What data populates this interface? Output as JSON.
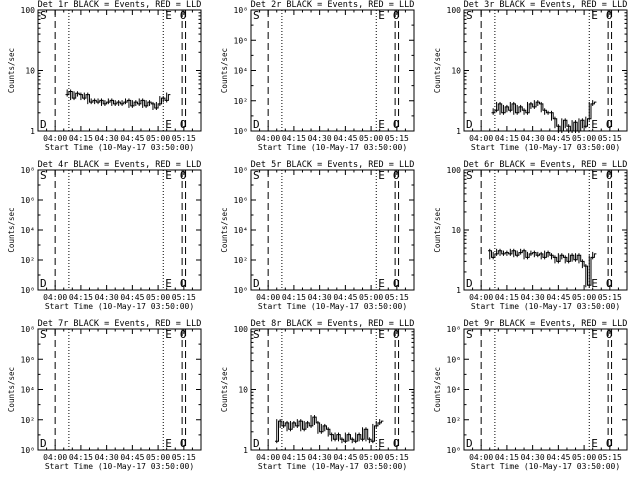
{
  "page": {
    "background": "#ffffff",
    "foreground": "#000000"
  },
  "chart_data": [
    {
      "type": "line",
      "title": "Det 1r BLACK = Events, RED = LLD",
      "xlabel": "Start Time (10-May-17 03:50:00)",
      "ylabel": "Counts/sec",
      "xlim": [
        "03:50",
        "05:25"
      ],
      "ylim": [
        1,
        100
      ],
      "yscale": "log",
      "y_tick_labels": [
        "1",
        "10",
        "100"
      ],
      "x_tick_labels": [
        "04:00",
        "04:15",
        "04:30",
        "04:45",
        "05:00",
        "05:15"
      ],
      "vlines": [
        {
          "time": "04:00",
          "style": "dashed"
        },
        {
          "time": "04:08",
          "style": "dotted"
        },
        {
          "time": "05:03",
          "style": "dotted"
        },
        {
          "time": "05:14",
          "style": "dashed"
        },
        {
          "time": "05:16",
          "style": "dashed"
        }
      ],
      "markers": {
        "top_left": "S",
        "bottom_left": "D",
        "top_right": "E",
        "right": "E",
        "right_circle": "O"
      },
      "series": [
        {
          "x": [
            "04:06",
            "04:08",
            "04:10",
            "04:12",
            "04:14",
            "04:16",
            "04:18",
            "04:20",
            "04:22",
            "04:24",
            "04:26",
            "04:28",
            "04:30",
            "04:32",
            "04:34",
            "04:36",
            "04:38",
            "04:40",
            "04:42",
            "04:44",
            "04:46",
            "04:48",
            "04:50",
            "04:52",
            "04:54",
            "04:56",
            "04:58",
            "05:00",
            "05:02",
            "05:04",
            "05:06"
          ],
          "y": [
            4.0,
            4.5,
            3.5,
            4.2,
            4.0,
            3.5,
            4.0,
            3.0,
            3.2,
            3.0,
            3.2,
            2.8,
            3.0,
            3.2,
            2.8,
            3.0,
            2.8,
            3.0,
            3.2,
            2.6,
            3.0,
            2.8,
            3.2,
            2.6,
            3.0,
            2.8,
            2.4,
            2.8,
            3.5,
            3.2,
            4.0
          ]
        }
      ]
    },
    {
      "type": "line",
      "title": "Det 2r BLACK = Events, RED = LLD",
      "xlabel": "Start Time (10-May-17 03:50:00)",
      "ylabel": "Counts/sec",
      "xlim": [
        "03:50",
        "05:25"
      ],
      "ylim": [
        1,
        100000000
      ],
      "yscale": "log",
      "y_tick_labels": [
        "10⁰",
        "10²",
        "10⁴",
        "10⁶",
        "10⁸"
      ],
      "x_tick_labels": [
        "04:00",
        "04:15",
        "04:30",
        "04:45",
        "05:00",
        "05:15"
      ],
      "vlines": [
        {
          "time": "04:00",
          "style": "dashed"
        },
        {
          "time": "04:08",
          "style": "dotted"
        },
        {
          "time": "05:03",
          "style": "dotted"
        },
        {
          "time": "05:14",
          "style": "dashed"
        },
        {
          "time": "05:16",
          "style": "dashed"
        }
      ],
      "markers": {
        "top_left": "S",
        "bottom_left": "D",
        "top_right": "E",
        "right": "E",
        "right_circle": "O"
      },
      "series": []
    },
    {
      "type": "line",
      "title": "Det 3r BLACK = Events, RED = LLD",
      "xlabel": "Start Time (10-May-17 03:50:00)",
      "ylabel": "Counts/sec",
      "xlim": [
        "03:50",
        "05:25"
      ],
      "ylim": [
        1,
        100
      ],
      "yscale": "log",
      "y_tick_labels": [
        "1",
        "10",
        "100"
      ],
      "x_tick_labels": [
        "04:00",
        "04:15",
        "04:30",
        "04:45",
        "05:00",
        "05:15"
      ],
      "vlines": [
        {
          "time": "04:00",
          "style": "dashed"
        },
        {
          "time": "04:08",
          "style": "dotted"
        },
        {
          "time": "05:03",
          "style": "dotted"
        },
        {
          "time": "05:14",
          "style": "dashed"
        },
        {
          "time": "05:16",
          "style": "dashed"
        }
      ],
      "markers": {
        "top_left": "S",
        "bottom_left": "D",
        "top_right": "E",
        "right": "E",
        "right_circle": "O"
      },
      "series": [
        {
          "x": [
            "04:06",
            "04:08",
            "04:10",
            "04:12",
            "04:14",
            "04:16",
            "04:18",
            "04:20",
            "04:22",
            "04:24",
            "04:26",
            "04:28",
            "04:30",
            "04:32",
            "04:34",
            "04:36",
            "04:38",
            "04:40",
            "04:42",
            "04:44",
            "04:46",
            "04:48",
            "04:50",
            "04:52",
            "04:54",
            "04:56",
            "04:58",
            "05:00",
            "05:02",
            "05:04",
            "05:06"
          ],
          "y": [
            2.0,
            2.2,
            2.8,
            2.0,
            2.5,
            2.2,
            2.8,
            2.0,
            2.5,
            2.2,
            2.0,
            2.8,
            2.5,
            3.0,
            2.8,
            2.2,
            2.0,
            2.0,
            1.6,
            1.2,
            1.0,
            1.5,
            1.2,
            1.0,
            1.4,
            1.0,
            1.5,
            1.2,
            1.6,
            2.8,
            3.0
          ]
        }
      ]
    },
    {
      "type": "line",
      "title": "Det 4r BLACK = Events, RED = LLD",
      "xlabel": "Start Time (10-May-17 03:50:00)",
      "ylabel": "Counts/sec",
      "xlim": [
        "03:50",
        "05:25"
      ],
      "ylim": [
        1,
        100000000
      ],
      "yscale": "log",
      "y_tick_labels": [
        "10⁰",
        "10²",
        "10⁴",
        "10⁶",
        "10⁸"
      ],
      "x_tick_labels": [
        "04:00",
        "04:15",
        "04:30",
        "04:45",
        "05:00",
        "05:15"
      ],
      "vlines": [
        {
          "time": "04:00",
          "style": "dashed"
        },
        {
          "time": "04:08",
          "style": "dotted"
        },
        {
          "time": "05:03",
          "style": "dotted"
        },
        {
          "time": "05:14",
          "style": "dashed"
        },
        {
          "time": "05:16",
          "style": "dashed"
        }
      ],
      "markers": {
        "top_left": "S",
        "bottom_left": "D",
        "top_right": "E",
        "right": "E",
        "right_circle": "O"
      },
      "series": []
    },
    {
      "type": "line",
      "title": "Det 5r BLACK = Events, RED = LLD",
      "xlabel": "Start Time (10-May-17 03:50:00)",
      "ylabel": "Counts/sec",
      "xlim": [
        "03:50",
        "05:25"
      ],
      "ylim": [
        1,
        100000000
      ],
      "yscale": "log",
      "y_tick_labels": [
        "10⁰",
        "10²",
        "10⁴",
        "10⁶",
        "10⁸"
      ],
      "x_tick_labels": [
        "04:00",
        "04:15",
        "04:30",
        "04:45",
        "05:00",
        "05:15"
      ],
      "vlines": [
        {
          "time": "04:00",
          "style": "dashed"
        },
        {
          "time": "04:08",
          "style": "dotted"
        },
        {
          "time": "05:03",
          "style": "dotted"
        },
        {
          "time": "05:14",
          "style": "dashed"
        },
        {
          "time": "05:16",
          "style": "dashed"
        }
      ],
      "markers": {
        "top_left": "S",
        "bottom_left": "D",
        "top_right": "E",
        "right": "E",
        "right_circle": "O"
      },
      "series": []
    },
    {
      "type": "line",
      "title": "Det 6r BLACK = Events, RED = LLD",
      "xlabel": "Start Time (10-May-17 03:50:00)",
      "ylabel": "Counts/sec",
      "xlim": [
        "03:50",
        "05:25"
      ],
      "ylim": [
        1,
        100
      ],
      "yscale": "log",
      "y_tick_labels": [
        "1",
        "10",
        "100"
      ],
      "x_tick_labels": [
        "04:00",
        "04:15",
        "04:30",
        "04:45",
        "05:00",
        "05:15"
      ],
      "vlines": [
        {
          "time": "04:00",
          "style": "dashed"
        },
        {
          "time": "04:08",
          "style": "dotted"
        },
        {
          "time": "05:03",
          "style": "dotted"
        },
        {
          "time": "05:14",
          "style": "dashed"
        },
        {
          "time": "05:16",
          "style": "dashed"
        }
      ],
      "markers": {
        "top_left": "S",
        "bottom_left": "D",
        "top_right": "E",
        "right": "E",
        "right_circle": "O"
      },
      "series": [
        {
          "x": [
            "04:04",
            "04:06",
            "04:08",
            "04:10",
            "04:12",
            "04:14",
            "04:16",
            "04:18",
            "04:20",
            "04:22",
            "04:24",
            "04:26",
            "04:28",
            "04:30",
            "04:32",
            "04:34",
            "04:36",
            "04:38",
            "04:40",
            "04:42",
            "04:44",
            "04:46",
            "04:48",
            "04:50",
            "04:52",
            "04:54",
            "04:56",
            "04:58",
            "05:00",
            "05:02",
            "05:04",
            "05:06"
          ],
          "y": [
            4.5,
            3.5,
            4.0,
            4.5,
            4.0,
            4.2,
            4.0,
            4.5,
            3.8,
            4.2,
            4.5,
            3.5,
            4.0,
            4.2,
            3.8,
            4.0,
            3.5,
            4.2,
            3.8,
            3.5,
            3.0,
            3.8,
            3.5,
            3.0,
            3.8,
            3.2,
            3.8,
            3.0,
            2.5,
            1.2,
            3.5,
            4.0
          ]
        }
      ]
    },
    {
      "type": "line",
      "title": "Det 7r BLACK = Events, RED = LLD",
      "xlabel": "Start Time (10-May-17 03:50:00)",
      "ylabel": "Counts/sec",
      "xlim": [
        "03:50",
        "05:25"
      ],
      "ylim": [
        1,
        100000000
      ],
      "yscale": "log",
      "y_tick_labels": [
        "10⁰",
        "10²",
        "10⁴",
        "10⁶",
        "10⁸"
      ],
      "x_tick_labels": [
        "04:00",
        "04:15",
        "04:30",
        "04:45",
        "05:00",
        "05:15"
      ],
      "vlines": [
        {
          "time": "04:00",
          "style": "dashed"
        },
        {
          "time": "04:08",
          "style": "dotted"
        },
        {
          "time": "05:03",
          "style": "dotted"
        },
        {
          "time": "05:14",
          "style": "dashed"
        },
        {
          "time": "05:16",
          "style": "dashed"
        }
      ],
      "markers": {
        "top_left": "S",
        "bottom_left": "D",
        "top_right": "E",
        "right": "E",
        "right_circle": "O"
      },
      "series": []
    },
    {
      "type": "line",
      "title": "Det 8r BLACK = Events, RED = LLD",
      "xlabel": "Start Time (10-May-17 03:50:00)",
      "ylabel": "Counts/sec",
      "xlim": [
        "03:50",
        "05:25"
      ],
      "ylim": [
        1,
        100
      ],
      "yscale": "log",
      "y_tick_labels": [
        "1",
        "10",
        "100"
      ],
      "x_tick_labels": [
        "04:00",
        "04:15",
        "04:30",
        "04:45",
        "05:00",
        "05:15"
      ],
      "vlines": [
        {
          "time": "04:00",
          "style": "dashed"
        },
        {
          "time": "04:08",
          "style": "dotted"
        },
        {
          "time": "05:03",
          "style": "dotted"
        },
        {
          "time": "05:14",
          "style": "dashed"
        },
        {
          "time": "05:16",
          "style": "dashed"
        }
      ],
      "markers": {
        "top_left": "S",
        "bottom_left": "D",
        "top_right": "E",
        "right": "E",
        "right_circle": "O"
      },
      "series": [
        {
          "x": [
            "04:04",
            "04:06",
            "04:08",
            "04:10",
            "04:12",
            "04:14",
            "04:16",
            "04:18",
            "04:20",
            "04:22",
            "04:24",
            "04:26",
            "04:28",
            "04:30",
            "04:32",
            "04:34",
            "04:36",
            "04:38",
            "04:40",
            "04:42",
            "04:44",
            "04:46",
            "04:48",
            "04:50",
            "04:52",
            "04:54",
            "04:56",
            "04:58",
            "05:00",
            "05:02",
            "05:04",
            "05:06"
          ],
          "y": [
            1.4,
            3.0,
            2.5,
            2.8,
            2.2,
            2.8,
            2.5,
            3.0,
            2.2,
            2.8,
            2.5,
            3.5,
            2.8,
            2.0,
            2.5,
            2.2,
            1.8,
            1.5,
            1.8,
            1.5,
            1.4,
            1.8,
            1.5,
            1.4,
            1.8,
            1.5,
            2.2,
            1.5,
            1.4,
            2.5,
            2.8,
            3.0
          ]
        }
      ]
    },
    {
      "type": "line",
      "title": "Det 9r BLACK = Events, RED = LLD",
      "xlabel": "Start Time (10-May-17 03:50:00)",
      "ylabel": "Counts/sec",
      "xlim": [
        "03:50",
        "05:25"
      ],
      "ylim": [
        1,
        100000000
      ],
      "yscale": "log",
      "y_tick_labels": [
        "10⁰",
        "10²",
        "10⁴",
        "10⁶",
        "10⁸"
      ],
      "x_tick_labels": [
        "04:00",
        "04:15",
        "04:30",
        "04:45",
        "05:00",
        "05:15"
      ],
      "vlines": [
        {
          "time": "04:00",
          "style": "dashed"
        },
        {
          "time": "04:08",
          "style": "dotted"
        },
        {
          "time": "05:03",
          "style": "dotted"
        },
        {
          "time": "05:14",
          "style": "dashed"
        },
        {
          "time": "05:16",
          "style": "dashed"
        }
      ],
      "markers": {
        "top_left": "S",
        "bottom_left": "D",
        "top_right": "E",
        "right": "E",
        "right_circle": "O"
      },
      "series": []
    }
  ]
}
